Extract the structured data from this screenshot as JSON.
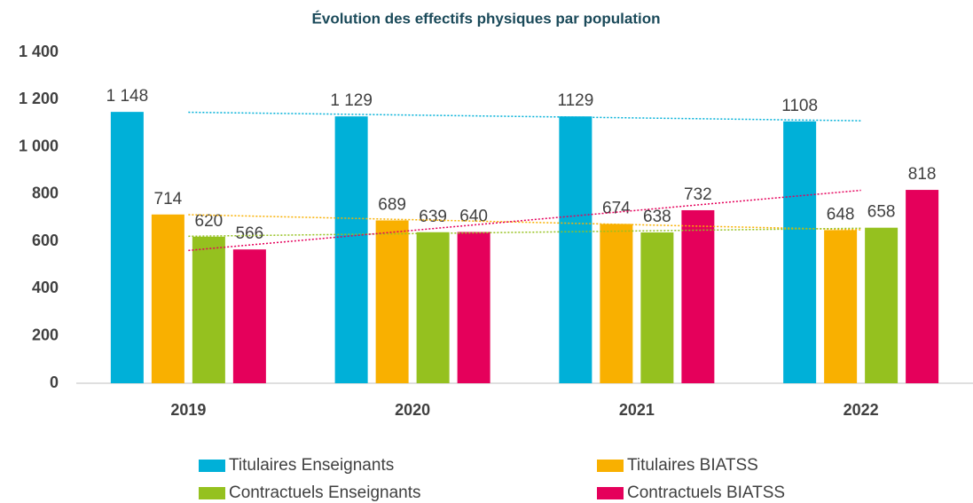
{
  "chart_data": {
    "type": "bar",
    "title": "Évolution des effectifs physiques par population",
    "categories": [
      "2019",
      "2020",
      "2021",
      "2022"
    ],
    "series": [
      {
        "name": "Titulaires Enseignants",
        "color": "#00b0d8",
        "values": [
          1148,
          1129,
          1129,
          1108
        ],
        "value_labels": [
          "1 148",
          "1 129",
          "1129",
          "1108"
        ]
      },
      {
        "name": "Titulaires BIATSS",
        "color": "#f9b000",
        "values": [
          714,
          689,
          674,
          648
        ]
      },
      {
        "name": "Contractuels Enseignants",
        "color": "#95c11f",
        "values": [
          620,
          639,
          638,
          658
        ]
      },
      {
        "name": "Contractuels BIATSS",
        "color": "#e5005b",
        "values": [
          566,
          640,
          732,
          818
        ]
      }
    ],
    "ylim": [
      0,
      1400
    ],
    "yticks": [
      0,
      200,
      400,
      600,
      800,
      {
        "value": 1000,
        "label": "1 000"
      },
      {
        "value": 1200,
        "label": "1 200"
      },
      {
        "value": 1400,
        "label": "1 400"
      }
    ],
    "grid": false,
    "trendline": true,
    "legend": "bottom"
  }
}
